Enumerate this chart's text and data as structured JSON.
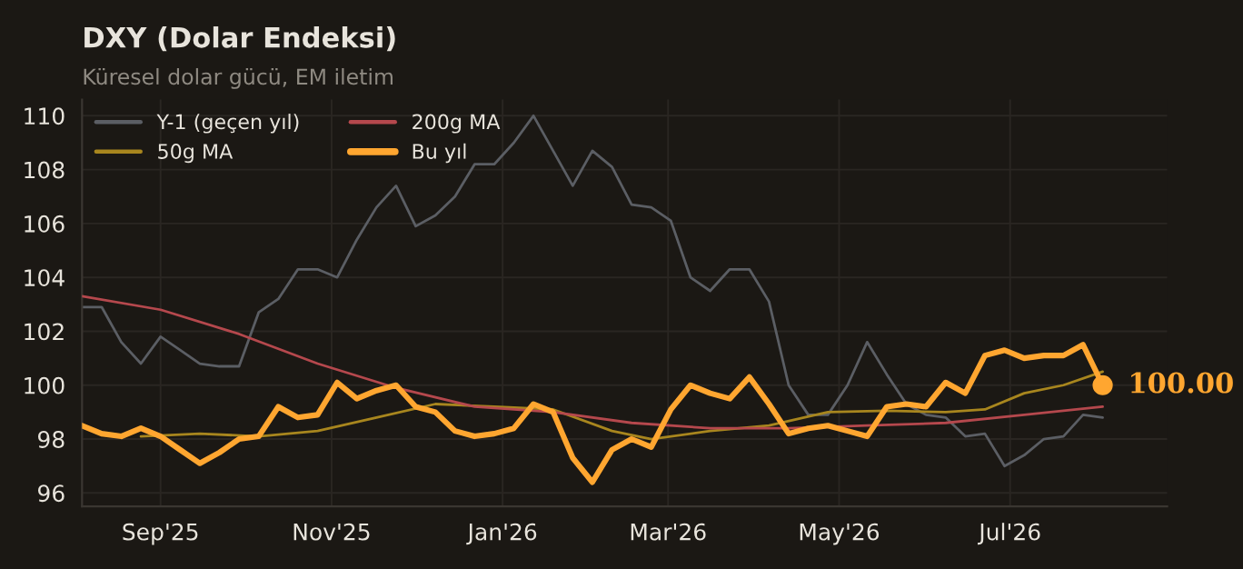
{
  "chart_data": {
    "type": "line",
    "title": "DXY (Dolar Endeksi)",
    "subtitle": "Küresel dolar gücü, EM iletim",
    "x": [
      "2025-08-04",
      "2025-08-11",
      "2025-08-18",
      "2025-08-25",
      "2025-09-01",
      "2025-09-08",
      "2025-09-15",
      "2025-09-22",
      "2025-09-29",
      "2025-10-06",
      "2025-10-13",
      "2025-10-20",
      "2025-10-27",
      "2025-11-03",
      "2025-11-10",
      "2025-11-17",
      "2025-11-24",
      "2025-12-01",
      "2025-12-08",
      "2025-12-15",
      "2025-12-22",
      "2025-12-29",
      "2026-01-05",
      "2026-01-12",
      "2026-01-19",
      "2026-01-26",
      "2026-02-02",
      "2026-02-09",
      "2026-02-16",
      "2026-02-23",
      "2026-03-02",
      "2026-03-09",
      "2026-03-16",
      "2026-03-23",
      "2026-03-30",
      "2026-04-06",
      "2026-04-13",
      "2026-04-20",
      "2026-04-27",
      "2026-05-04",
      "2026-05-11",
      "2026-05-18",
      "2026-05-25",
      "2026-06-01",
      "2026-06-08",
      "2026-06-15",
      "2026-06-22",
      "2026-06-29",
      "2026-07-06",
      "2026-07-13",
      "2026-07-20",
      "2026-07-27",
      "2026-08-03"
    ],
    "series": [
      {
        "name": "Y-1 (geçen yıl)",
        "color": "#5b5e64",
        "values": [
          102.9,
          102.9,
          101.6,
          100.8,
          101.8,
          101.3,
          100.8,
          100.7,
          100.7,
          102.7,
          103.2,
          104.3,
          104.3,
          104.0,
          105.4,
          106.6,
          107.4,
          105.9,
          106.3,
          107.0,
          108.2,
          108.2,
          109.0,
          110.0,
          108.7,
          107.4,
          108.7,
          108.1,
          106.7,
          106.6,
          106.1,
          104.0,
          103.5,
          104.3,
          104.3,
          103.1,
          100.0,
          98.9,
          98.9,
          100.0,
          101.6,
          100.4,
          99.3,
          98.9,
          98.8,
          98.1,
          98.2,
          97.0,
          97.4,
          98.0,
          98.1,
          98.9,
          98.8
        ]
      },
      {
        "name": "50g MA",
        "color": "#a8861e",
        "x": [
          "2025-08-25",
          "2025-09-15",
          "2025-10-06",
          "2025-10-27",
          "2025-11-17",
          "2025-12-08",
          "2025-12-29",
          "2026-01-19",
          "2026-02-09",
          "2026-02-23",
          "2026-03-16",
          "2026-04-06",
          "2026-04-27",
          "2026-05-18",
          "2026-06-08",
          "2026-06-22",
          "2026-07-06",
          "2026-07-20",
          "2026-08-03"
        ],
        "values": [
          98.1,
          98.2,
          98.1,
          98.3,
          98.8,
          99.3,
          99.2,
          99.1,
          98.3,
          98.0,
          98.3,
          98.5,
          99.0,
          99.05,
          99.0,
          99.1,
          99.7,
          100.0,
          100.5
        ]
      },
      {
        "name": "200g MA",
        "color": "#b5484d",
        "x": [
          "2025-08-04",
          "2025-09-01",
          "2025-09-29",
          "2025-10-27",
          "2025-11-24",
          "2025-12-22",
          "2026-01-19",
          "2026-02-16",
          "2026-03-16",
          "2026-04-13",
          "2026-05-11",
          "2026-06-08",
          "2026-07-06",
          "2026-08-03"
        ],
        "values": [
          103.3,
          102.8,
          101.9,
          100.8,
          99.9,
          99.2,
          99.0,
          98.6,
          98.4,
          98.4,
          98.5,
          98.6,
          98.9,
          99.2
        ]
      },
      {
        "name": "Bu yıl",
        "color": "#ffa630",
        "values": [
          98.5,
          98.2,
          98.1,
          98.4,
          98.1,
          97.6,
          97.1,
          97.5,
          98.0,
          98.1,
          99.2,
          98.8,
          98.9,
          100.1,
          99.5,
          99.8,
          100.0,
          99.2,
          99.0,
          98.3,
          98.1,
          98.2,
          98.4,
          99.3,
          99.0,
          97.3,
          96.4,
          97.6,
          98.0,
          97.7,
          99.1,
          100.0,
          99.7,
          99.5,
          100.3,
          99.3,
          98.2,
          98.4,
          98.5,
          98.3,
          98.1,
          99.2,
          99.3,
          99.2,
          100.1,
          99.7,
          101.1,
          101.3,
          101.0,
          101.1,
          101.1,
          101.5,
          100.0
        ]
      }
    ],
    "annotations": [
      {
        "text": "100.00",
        "x": "2026-08-03",
        "y": 100
      }
    ],
    "xlim": [
      "2025-08-04",
      "2026-08-26"
    ],
    "xticks": [
      {
        "value": "2025-09-01",
        "label": "Sep'25"
      },
      {
        "value": "2025-11-01",
        "label": "Nov'25"
      },
      {
        "value": "2026-01-01",
        "label": "Jan'26"
      },
      {
        "value": "2026-03-01",
        "label": "Mar'26"
      },
      {
        "value": "2026-05-01",
        "label": "May'26"
      },
      {
        "value": "2026-07-01",
        "label": "Jul'26"
      }
    ],
    "ylim": [
      95.5,
      110.6
    ],
    "yticks": [
      96,
      98,
      100,
      102,
      104,
      106,
      108,
      110
    ],
    "grid": true,
    "legend": "top left"
  }
}
